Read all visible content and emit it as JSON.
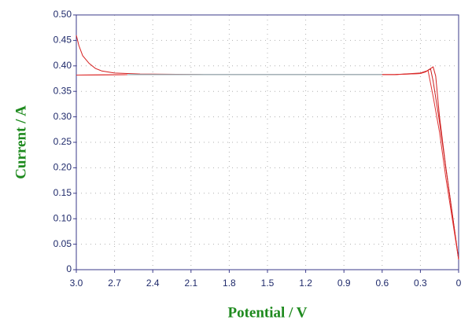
{
  "chart_data": {
    "type": "line",
    "x_label": "Potential / V",
    "y_label": "Current / A",
    "xlim": [
      3,
      0
    ],
    "ylim": [
      0,
      0.5
    ],
    "xticks": [
      {
        "value": 3,
        "label": "3.0"
      },
      2.7,
      2.4,
      2.1,
      1.8,
      1.5,
      1.2,
      0.9,
      0.6,
      0.3,
      0
    ],
    "yticks": [
      0,
      0.05,
      {
        "value": 0.1,
        "label": "0.10"
      },
      0.15,
      {
        "value": 0.2,
        "label": "0.20"
      },
      0.25,
      {
        "value": 0.3,
        "label": "0.30"
      },
      0.35,
      {
        "value": 0.4,
        "label": "0.40"
      },
      0.45,
      {
        "value": 0.5,
        "label": "0.50"
      }
    ],
    "grid": true,
    "series": [
      {
        "color": "#d62020",
        "x": [
          3.0,
          2.98,
          2.95,
          2.9,
          2.85,
          2.8,
          2.7,
          2.5,
          2.0,
          1.5,
          1.0,
          0.5,
          0.3,
          0.25,
          0.2,
          0.18,
          0.15,
          0.1,
          0.05,
          0.0
        ],
        "values": [
          0.46,
          0.44,
          0.42,
          0.405,
          0.395,
          0.39,
          0.386,
          0.384,
          0.383,
          0.383,
          0.383,
          0.383,
          0.385,
          0.39,
          0.398,
          0.38,
          0.3,
          0.2,
          0.11,
          0.02
        ]
      },
      {
        "color": "#c81e1e",
        "x": [
          3.0,
          2.5,
          2.0,
          1.5,
          1.0,
          0.5,
          0.3,
          0.25,
          0.22,
          0.2,
          0.15,
          0.1,
          0.05,
          0.0
        ],
        "values": [
          0.382,
          0.383,
          0.383,
          0.383,
          0.383,
          0.383,
          0.386,
          0.39,
          0.394,
          0.37,
          0.29,
          0.2,
          0.11,
          0.02
        ]
      },
      {
        "color": "#e03030",
        "x": [
          3.0,
          2.5,
          2.0,
          1.5,
          1.0,
          0.5,
          0.3,
          0.26,
          0.24,
          0.2,
          0.15,
          0.1,
          0.05,
          0.0
        ],
        "values": [
          0.382,
          0.383,
          0.383,
          0.383,
          0.383,
          0.383,
          0.385,
          0.388,
          0.391,
          0.34,
          0.27,
          0.18,
          0.1,
          0.02
        ]
      },
      {
        "color": "#7fd0d8",
        "x": [
          2.6,
          2.0,
          1.5,
          1.0,
          0.6
        ],
        "values": [
          0.383,
          0.383,
          0.383,
          0.383,
          0.383
        ]
      }
    ]
  }
}
